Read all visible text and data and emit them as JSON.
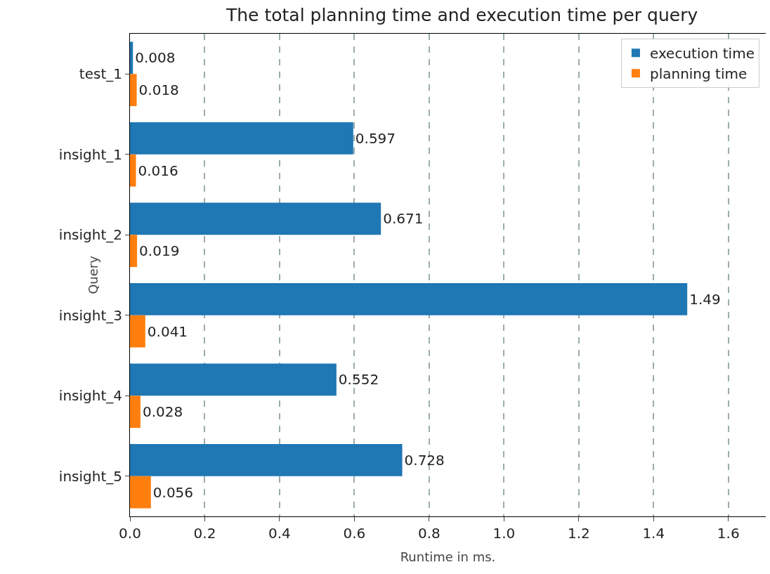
{
  "chart_data": {
    "type": "bar",
    "orientation": "horizontal",
    "title": "The total planning time and execution time per query",
    "xlabel": "Runtime in ms.",
    "ylabel": "Query",
    "categories": [
      "test_1",
      "insight_1",
      "insight_2",
      "insight_3",
      "insight_4",
      "insight_5"
    ],
    "series": [
      {
        "name": "execution time",
        "color": "#1f77b4",
        "values": [
          0.008,
          0.597,
          0.671,
          1.49,
          0.552,
          0.728
        ]
      },
      {
        "name": "planning time",
        "color": "#ff7f0e",
        "values": [
          0.018,
          0.016,
          0.019,
          0.041,
          0.028,
          0.056
        ]
      }
    ],
    "xlim": [
      0,
      1.7
    ],
    "xticks": [
      {
        "value": 0,
        "label": "0.0"
      },
      0.2,
      0.4,
      0.6,
      0.8,
      {
        "value": 1,
        "label": "1.0"
      },
      1.2,
      1.4,
      1.6
    ],
    "grid": "x",
    "legend": "top right",
    "data_labels": true
  }
}
